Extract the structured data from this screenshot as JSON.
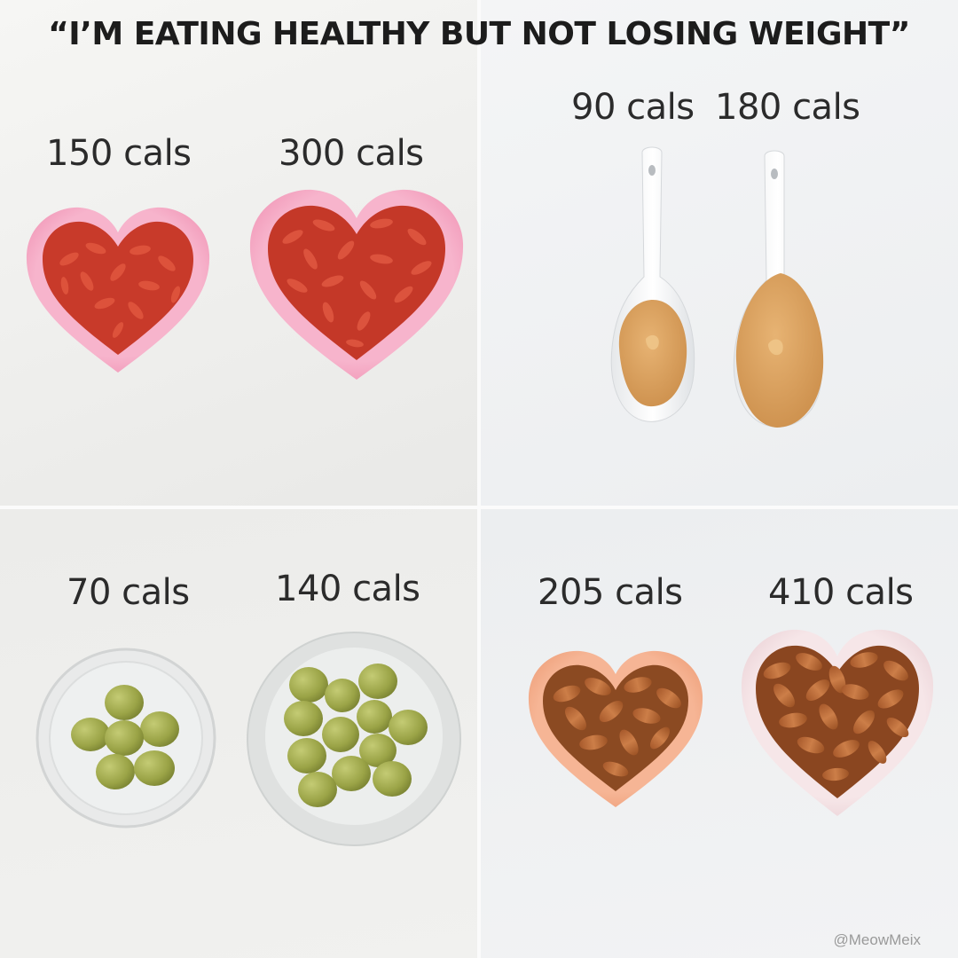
{
  "headline": "“I’M EATING HEALTHY BUT NOT LOSING WEIGHT”",
  "panels": {
    "goji": {
      "small_cal": "150 cals",
      "large_cal": "300 cals"
    },
    "nut_butter": {
      "small_cal": "90 cals",
      "large_cal": "180 cals"
    },
    "olives": {
      "small_cal": "70 cals",
      "large_cal": "140 cals"
    },
    "almonds": {
      "small_cal": "205 cals",
      "large_cal": "410 cals"
    }
  },
  "watermark": "@MeowMeix",
  "colors": {
    "goji": "#d2452e",
    "heart_dish_pink": "#f3a2c0",
    "nut_butter": "#d9a060",
    "olive": "#a7b052",
    "almond": "#b86a3a",
    "heart_dish_orange": "#f2a682",
    "heart_dish_light_pink": "#f1dde0"
  }
}
